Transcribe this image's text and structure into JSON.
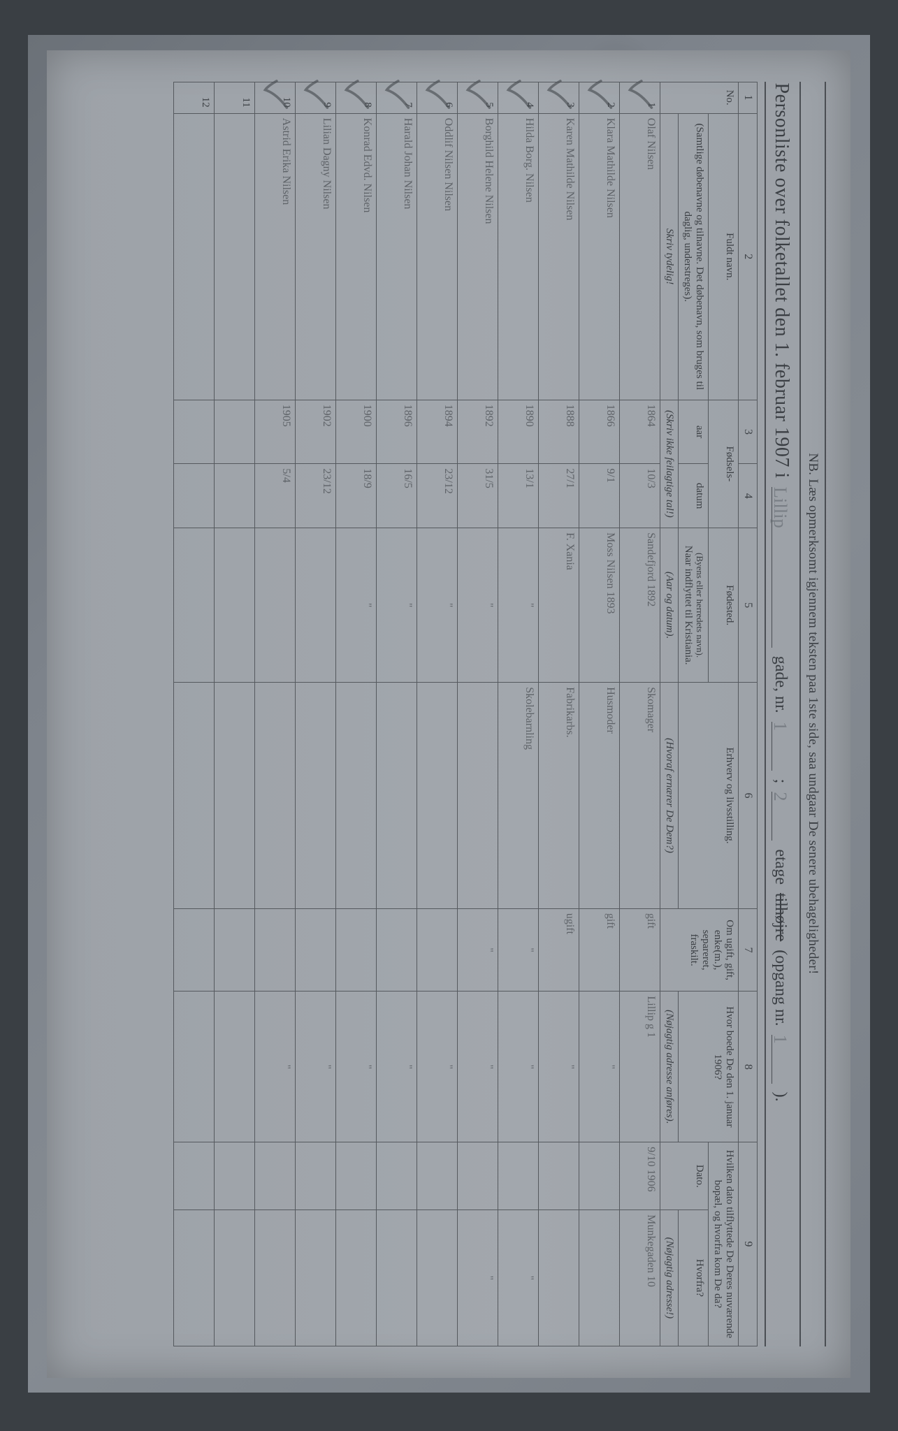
{
  "topNote": "NB. Læs opmerksomt igjennem teksten paa 1ste side, saa undgaar De senere ubehageligheder!",
  "title": {
    "main": "Personliste over folketallet den 1. februar 1907 i",
    "streetHand": "Lillip",
    "gadeLabel": "gade, nr.",
    "gadeNr": "1",
    "semicolon": ";",
    "etageHand": "2",
    "etageLabel": "etage",
    "strike": "tilhøjre",
    "opgangLabel": "(opgang nr.",
    "opgangHand": "1",
    "close": ")."
  },
  "columns": {
    "numLabel": "1",
    "c2n": "2",
    "c3n": "3",
    "c4n": "4",
    "c5n": "5",
    "c6n": "6",
    "c7n": "7",
    "c8n": "8",
    "c9n": "9",
    "no": "No.",
    "name": "Fuldt navn.",
    "nameSub": "(Samtlige døbenavne og tilnavne.  Det døbenavn, som bruges til daglig, understreges).",
    "nameHint": "Skriv tydelig!",
    "born": "Fødsels-",
    "bornYear": "aar",
    "bornDate": "datum",
    "bornHint": "(Skriv ikke feilagtige tal!)",
    "birthplace": "Fødested.",
    "birthplaceSub1": "(Byens eller herredets navn).",
    "birthplaceSub2": "Naar indflyttet til Kristiania.",
    "birthplaceHint": "(Aar og datum).",
    "occupation": "Erhverv og livsstilling.",
    "occupationSub": "(Hvoraf ernærer De Dem?)",
    "marital": "Om ugift, gift, enke(m.), separeret, fraskilt.",
    "residence": "Hvor boede De den 1. januar 1906?",
    "residenceSub": "(Nøjagtig adresse anføres).",
    "moved": "Hvilken dato tilflyttede De Deres nuværende bopæl, og hvorfra kom De da?",
    "movedDate": "Dato.",
    "movedFrom": "Hvorfra?",
    "movedFromSub": "(Nøjagtig adresse!)"
  },
  "rows": [
    {
      "n": "1",
      "name": "Olaf Nilsen",
      "y": "1864",
      "d": "10/3",
      "bp": "Sandefjord 1892",
      "occ": "Skomager",
      "mar": "gift",
      "res": "Lillip g 1",
      "mdate": "9/10 1906",
      "mfrom": "Munkegaden 10"
    },
    {
      "n": "2",
      "name": "Klara Mathilde Nilsen",
      "y": "1866",
      "d": "9/1",
      "bp": "Moss Nilsen 1893",
      "occ": "Husmoder",
      "mar": "gift",
      "res": "\"",
      "mdate": "",
      "mfrom": ""
    },
    {
      "n": "3",
      "name": "Karen Mathilde Nilsen",
      "y": "1888",
      "d": "27/1",
      "bp": "F. Xania",
      "occ": "Fabrikarbs.",
      "mar": "ugift",
      "res": "\"",
      "mdate": "",
      "mfrom": ""
    },
    {
      "n": "4",
      "name": "Hilda Borg. Nilsen",
      "y": "1890",
      "d": "13/1",
      "bp": "\"",
      "occ": "Skolebarnling",
      "mar": "\"",
      "res": "\"",
      "mdate": "",
      "mfrom": "\""
    },
    {
      "n": "5",
      "name": "Borghild Helene Nilsen",
      "y": "1892",
      "d": "31/5",
      "bp": "\"",
      "occ": "",
      "mar": "\"",
      "res": "\"",
      "mdate": "",
      "mfrom": "\""
    },
    {
      "n": "6",
      "name": "Oddlif Nilsen Nilsen",
      "y": "1894",
      "d": "23/12",
      "bp": "\"",
      "occ": "",
      "mar": "",
      "res": "\"",
      "mdate": "",
      "mfrom": ""
    },
    {
      "n": "7",
      "name": "Harald Johan Nilsen",
      "y": "1896",
      "d": "16/5",
      "bp": "\"",
      "occ": "",
      "mar": "",
      "res": "\"",
      "mdate": "",
      "mfrom": ""
    },
    {
      "n": "8",
      "name": "Konrad Edvd. Nilsen",
      "y": "1900",
      "d": "18/9",
      "bp": "\"",
      "occ": "",
      "mar": "",
      "res": "\"",
      "mdate": "",
      "mfrom": ""
    },
    {
      "n": "9",
      "name": "Lilian Dagny Nilsen",
      "y": "1902",
      "d": "23/12",
      "bp": "",
      "occ": "",
      "mar": "",
      "res": "\"",
      "mdate": "",
      "mfrom": ""
    },
    {
      "n": "10",
      "name": "Astrid Erika Nilsen",
      "y": "1905",
      "d": "5/4",
      "bp": "",
      "occ": "",
      "mar": "",
      "res": "\"",
      "mdate": "",
      "mfrom": ""
    },
    {
      "n": "11",
      "name": "",
      "y": "",
      "d": "",
      "bp": "",
      "occ": "",
      "mar": "",
      "res": "",
      "mdate": "",
      "mfrom": ""
    },
    {
      "n": "12",
      "name": "",
      "y": "",
      "d": "",
      "bp": "",
      "occ": "",
      "mar": "",
      "res": "",
      "mdate": "",
      "mfrom": ""
    }
  ],
  "style": {
    "bg": "#7a8088",
    "paper": "#9ea3a9",
    "ink": "#3b3f44",
    "hand": "#5c6269",
    "border": "#4a4e53"
  }
}
